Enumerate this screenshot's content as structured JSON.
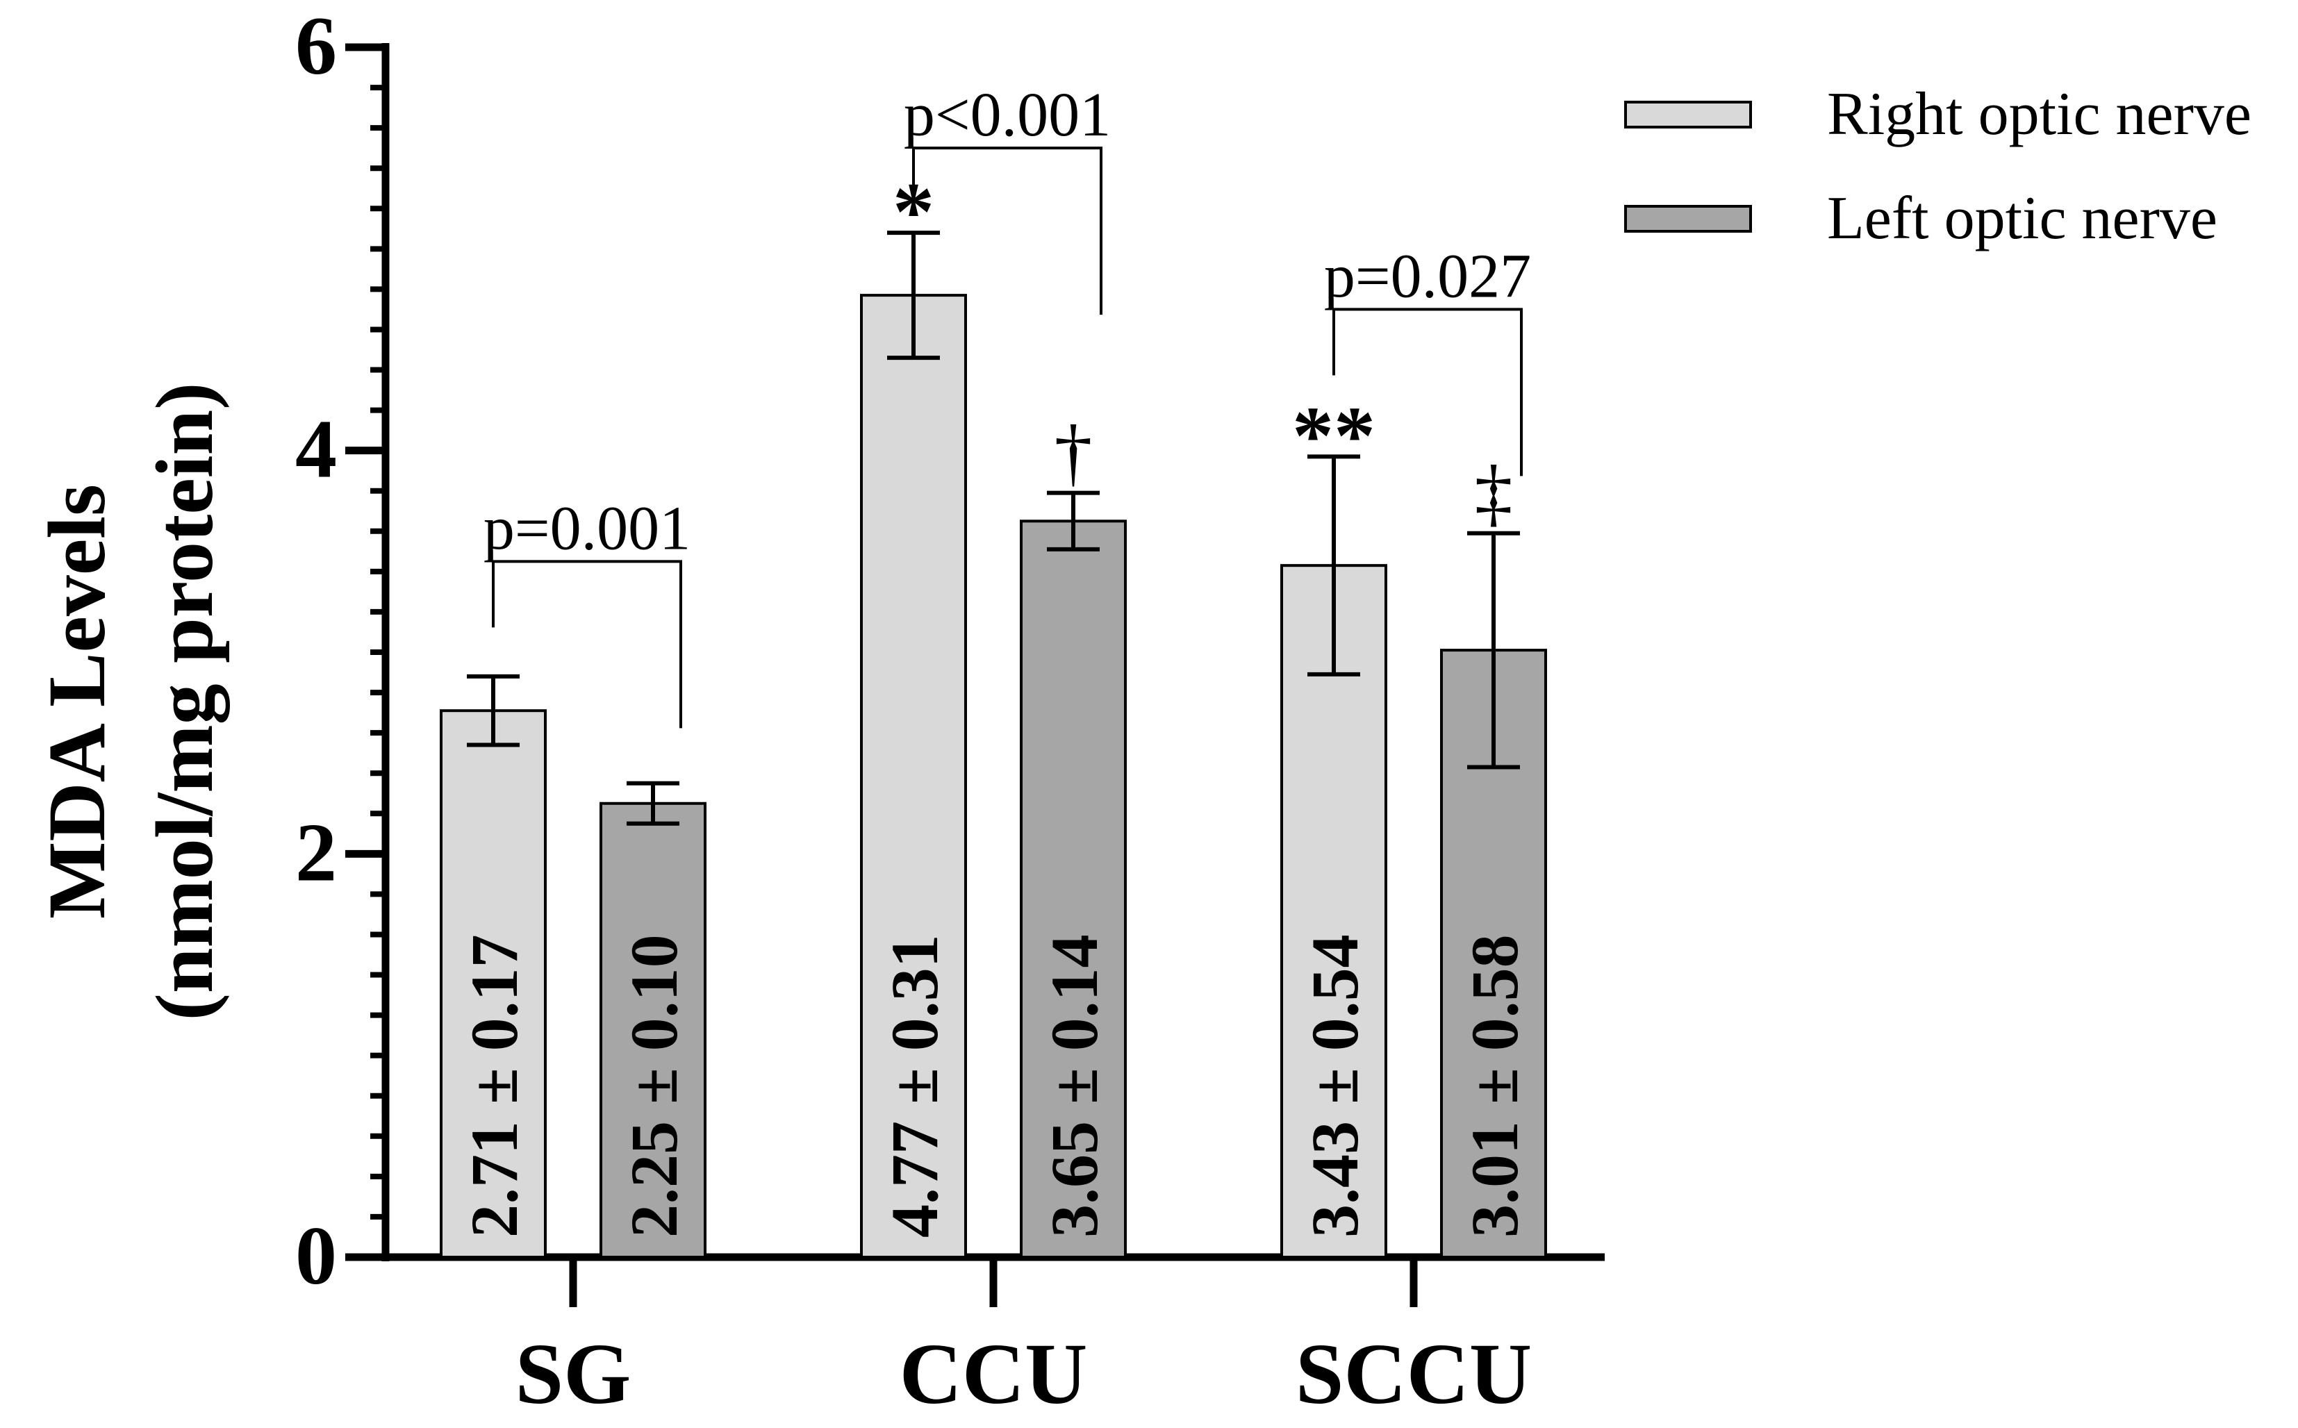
{
  "chart_data": {
    "type": "bar",
    "title": "",
    "xlabel": "",
    "ylabel_line1": "MDA Levels",
    "ylabel_line2": "(nmol/mg protein)",
    "ylim": [
      0,
      6
    ],
    "y_ticks": [
      0,
      2,
      4,
      6
    ],
    "y_tick_labels": [
      "0",
      "2",
      "4",
      "6"
    ],
    "y_minor_step": 0.2,
    "categories": [
      "SG",
      "CCU",
      "SCCU"
    ],
    "series": [
      {
        "name": "Right optic nerve",
        "color": "#d9d9d9",
        "values": [
          2.71,
          4.77,
          3.43
        ],
        "errors": [
          0.17,
          0.31,
          0.54
        ],
        "value_labels": [
          "2.71 ± 0.17",
          "4.77 ± 0.31",
          "3.43 ± 0.54"
        ],
        "markers": [
          "",
          "*",
          "**"
        ]
      },
      {
        "name": "Left optic nerve",
        "color": "#a6a6a6",
        "values": [
          2.25,
          3.65,
          3.01
        ],
        "errors": [
          0.1,
          0.14,
          0.58
        ],
        "value_labels": [
          "2.25 ± 0.10",
          "3.65 ± 0.14",
          "3.01 ± 0.58"
        ],
        "markers": [
          "",
          "†",
          "‡"
        ]
      }
    ],
    "comparisons": [
      {
        "category": "SG",
        "label": "p=0.001",
        "level": 3.45
      },
      {
        "category": "CCU",
        "label": "p<0.001",
        "level": 5.5
      },
      {
        "category": "SCCU",
        "label": "p=0.027",
        "level": 4.7
      }
    ],
    "legend_position": "top-right",
    "grid": false
  }
}
